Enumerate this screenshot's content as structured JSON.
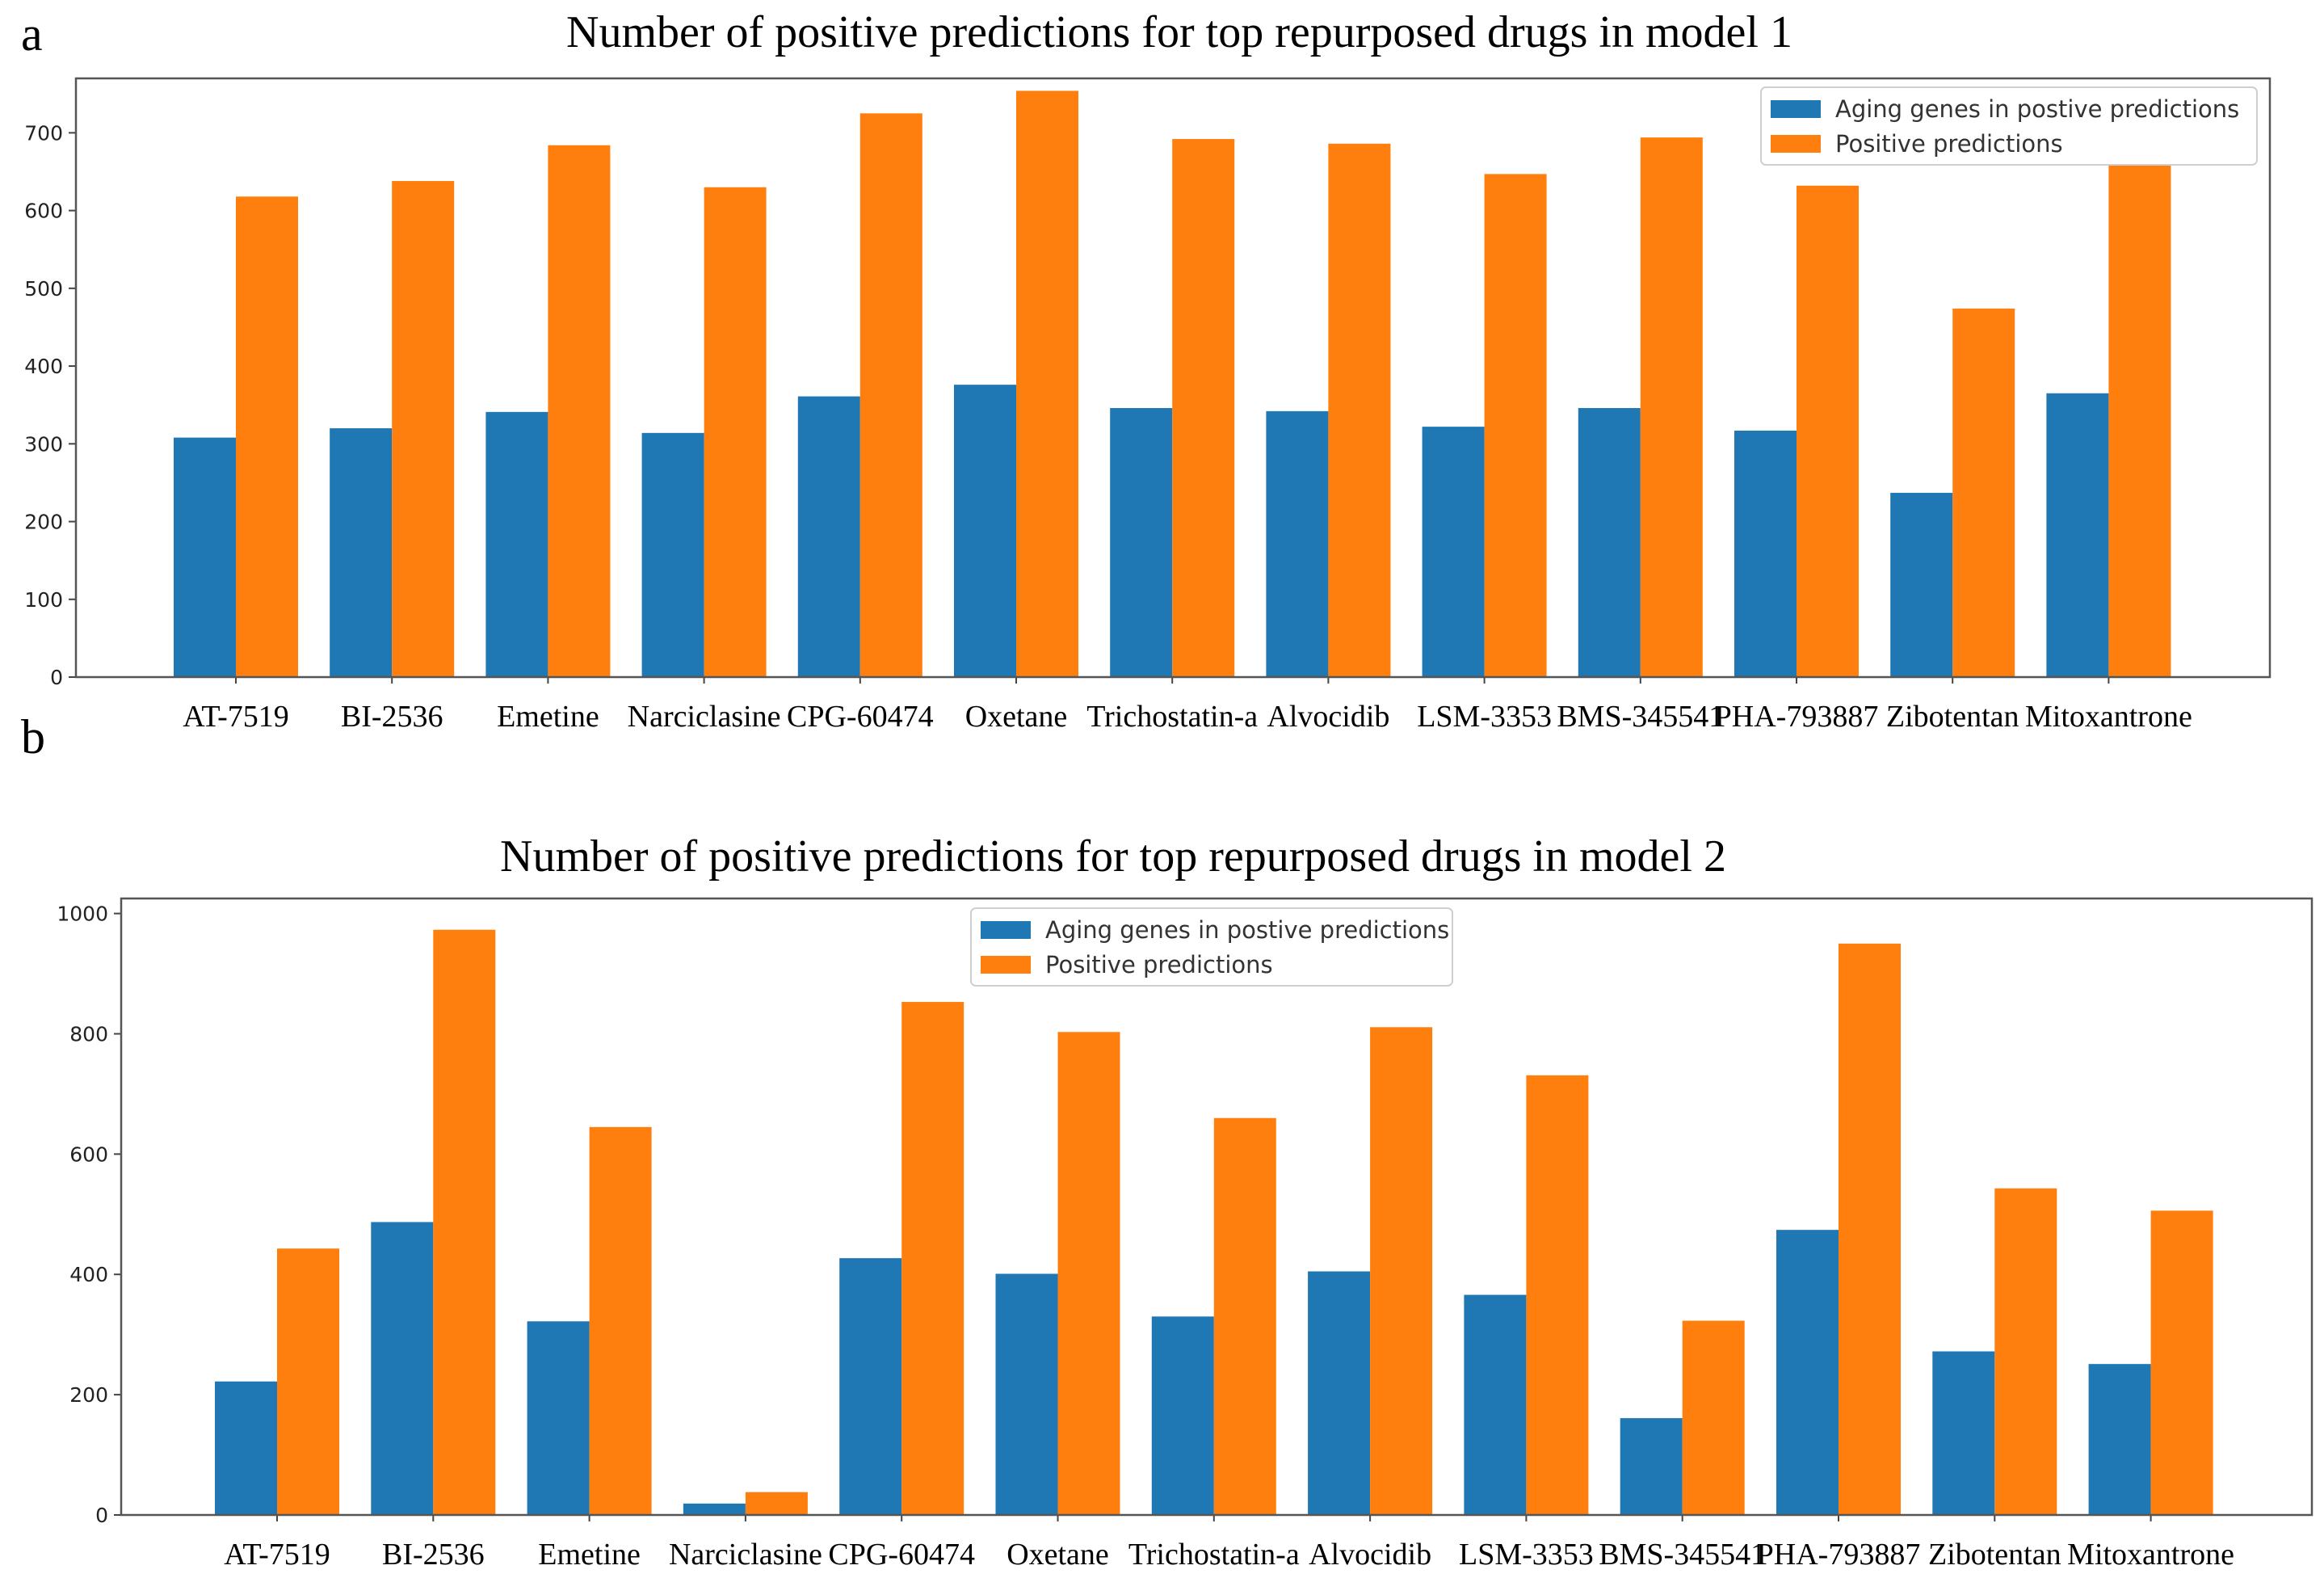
{
  "colors": {
    "aging": "#1f77b4",
    "positive": "#ff7f0e"
  },
  "chart_data": [
    {
      "panel": "a",
      "type": "bar",
      "title": "Number of positive predictions for top repurposed drugs in model 1",
      "xlabel": "",
      "ylabel": "",
      "categories": [
        "AT-7519",
        "BI-2536",
        "Emetine",
        "Narciclasine",
        "CPG-60474",
        "Oxetane",
        "Trichostatin-a",
        "Alvocidib",
        "LSM-3353",
        "BMS-345541",
        "PHA-793887",
        "Zibotentan",
        "Mitoxantrone"
      ],
      "series": [
        {
          "name": "Aging genes in postive predictions",
          "values": [
            308,
            320,
            341,
            314,
            361,
            376,
            346,
            342,
            322,
            346,
            317,
            237,
            365
          ]
        },
        {
          "name": "Positive predictions",
          "values": [
            618,
            638,
            684,
            630,
            725,
            754,
            692,
            686,
            647,
            694,
            632,
            474,
            733
          ]
        }
      ],
      "ylim": [
        0,
        770
      ],
      "yticks": [
        0,
        100,
        200,
        300,
        400,
        500,
        600,
        700
      ],
      "grid": false,
      "legend": "top-right"
    },
    {
      "panel": "b",
      "type": "bar",
      "title": "Number of positive predictions for top repurposed drugs in model 2",
      "xlabel": "",
      "ylabel": "",
      "categories": [
        "AT-7519",
        "BI-2536",
        "Emetine",
        "Narciclasine",
        "CPG-60474",
        "Oxetane",
        "Trichostatin-a",
        "Alvocidib",
        "LSM-3353",
        "BMS-345541",
        "PHA-793887",
        "Zibotentan",
        "Mitoxantrone"
      ],
      "series": [
        {
          "name": "Aging genes in postive predictions",
          "values": [
            222,
            487,
            322,
            19,
            427,
            401,
            330,
            405,
            366,
            161,
            474,
            272,
            251
          ]
        },
        {
          "name": "Positive predictions",
          "values": [
            443,
            973,
            645,
            38,
            853,
            803,
            660,
            811,
            731,
            323,
            950,
            543,
            506
          ]
        }
      ],
      "ylim": [
        0,
        1025
      ],
      "yticks": [
        0,
        200,
        400,
        600,
        800,
        1000
      ],
      "grid": false,
      "legend": "upper-center"
    }
  ]
}
